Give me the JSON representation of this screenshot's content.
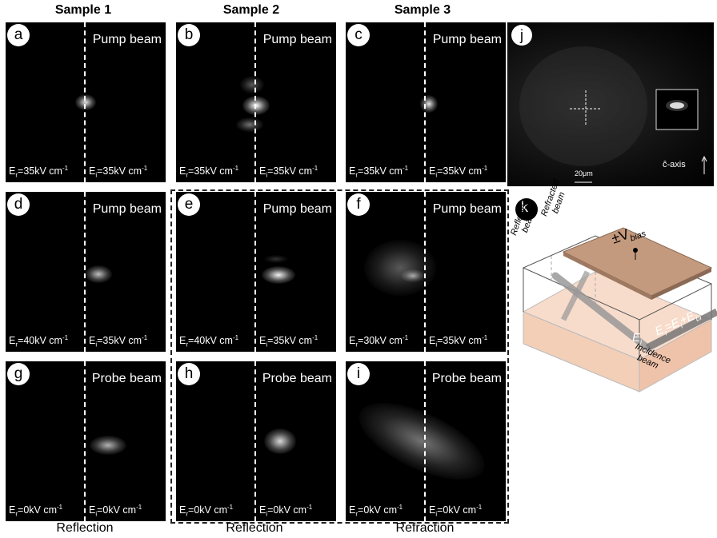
{
  "columns": [
    "Sample 1",
    "Sample 2",
    "Sample 3"
  ],
  "panels": [
    {
      "letter": "a",
      "beam": "Pump beam",
      "er": "35kV cm",
      "ei": "35kV cm"
    },
    {
      "letter": "b",
      "beam": "Pump beam",
      "er": "35kV cm",
      "ei": "35kV cm"
    },
    {
      "letter": "c",
      "beam": "Pump beam",
      "er": "35kV cm",
      "ei": "35kV cm"
    },
    {
      "letter": "d",
      "beam": "Pump beam",
      "er": "40kV cm",
      "ei": "35kV cm"
    },
    {
      "letter": "e",
      "beam": "Pump beam",
      "er": "40kV cm",
      "ei": "35kV cm"
    },
    {
      "letter": "f",
      "beam": "Pump beam",
      "er": "30kV cm",
      "ei": "35kV cm"
    },
    {
      "letter": "g",
      "beam": "Probe beam",
      "er": "0kV cm",
      "ei": "0kV cm"
    },
    {
      "letter": "h",
      "beam": "Probe beam",
      "er": "0kV cm",
      "ei": "0kV cm"
    },
    {
      "letter": "i",
      "beam": "Probe beam",
      "er": "0kV cm",
      "ei": "0kV cm"
    }
  ],
  "panel_j": {
    "letter": "j",
    "scale": "20μm",
    "axis": "ĉ-axis"
  },
  "panel_k": {
    "letter": "k",
    "bias": "±V",
    "bias_sub": "bias",
    "reflected": [
      "Reflected",
      "beam"
    ],
    "refracted": [
      "Refracted",
      "beam"
    ],
    "incidence": [
      "Incidence",
      "beam"
    ],
    "ei_label": "E",
    "ei_sub": "i",
    "field_eq": "E",
    "field_eq_r": "r",
    "field_eq_mid": "=E",
    "field_eq_i": "i",
    "field_eq_plus": "+E",
    "field_eq_b": "bi"
  },
  "bottom_labels": [
    "Reflection",
    "Reflection",
    "Refraction"
  ],
  "field_sub_r": "r",
  "field_sub_i": "i",
  "field_prefix": "E",
  "field_sup": "-1"
}
